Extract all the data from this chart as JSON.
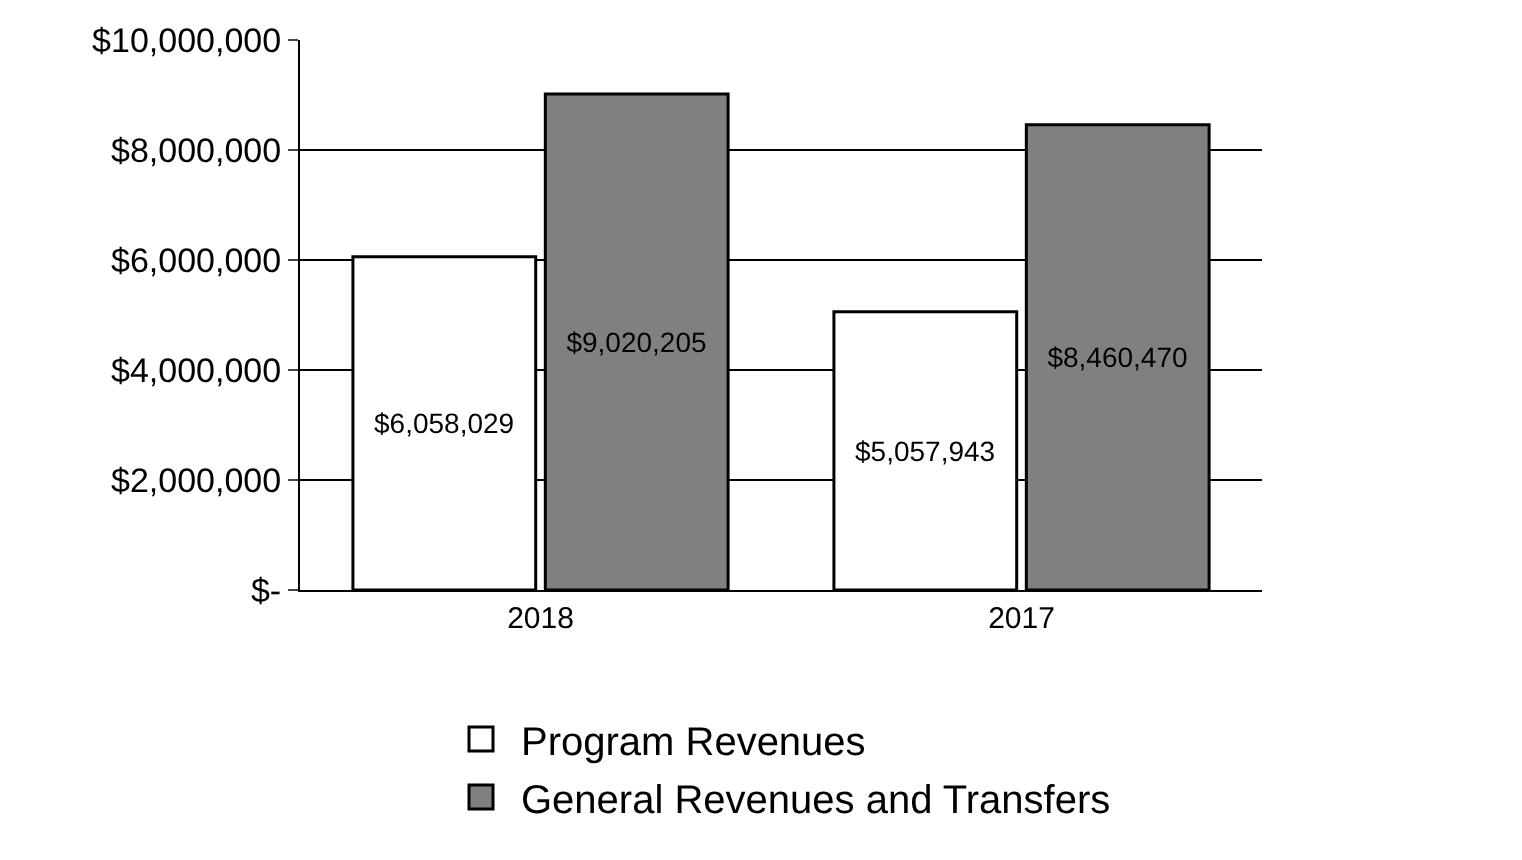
{
  "chart_data": {
    "type": "bar",
    "categories": [
      "2018",
      "2017"
    ],
    "series": [
      {
        "name": "Program Revenues",
        "color": "#ffffff",
        "values": [
          6058029,
          5057943
        ],
        "value_labels": [
          "$6,058,029",
          "$5,057,943"
        ]
      },
      {
        "name": "General Revenues and Transfers",
        "color": "#808080",
        "values": [
          9020205,
          8460470
        ],
        "value_labels": [
          "$9,020,205",
          "$8,460,470"
        ]
      }
    ],
    "ylim": [
      0,
      10000000
    ],
    "yticks": [
      {
        "value": 0,
        "label": "$-"
      },
      {
        "value": 2000000,
        "label": "$2,000,000"
      },
      {
        "value": 4000000,
        "label": "$4,000,000"
      },
      {
        "value": 6000000,
        "label": "$6,000,000"
      },
      {
        "value": 8000000,
        "label": "$8,000,000"
      },
      {
        "value": 10000000,
        "label": "$10,000,000"
      }
    ],
    "grid": "y",
    "legend": "bottom"
  }
}
